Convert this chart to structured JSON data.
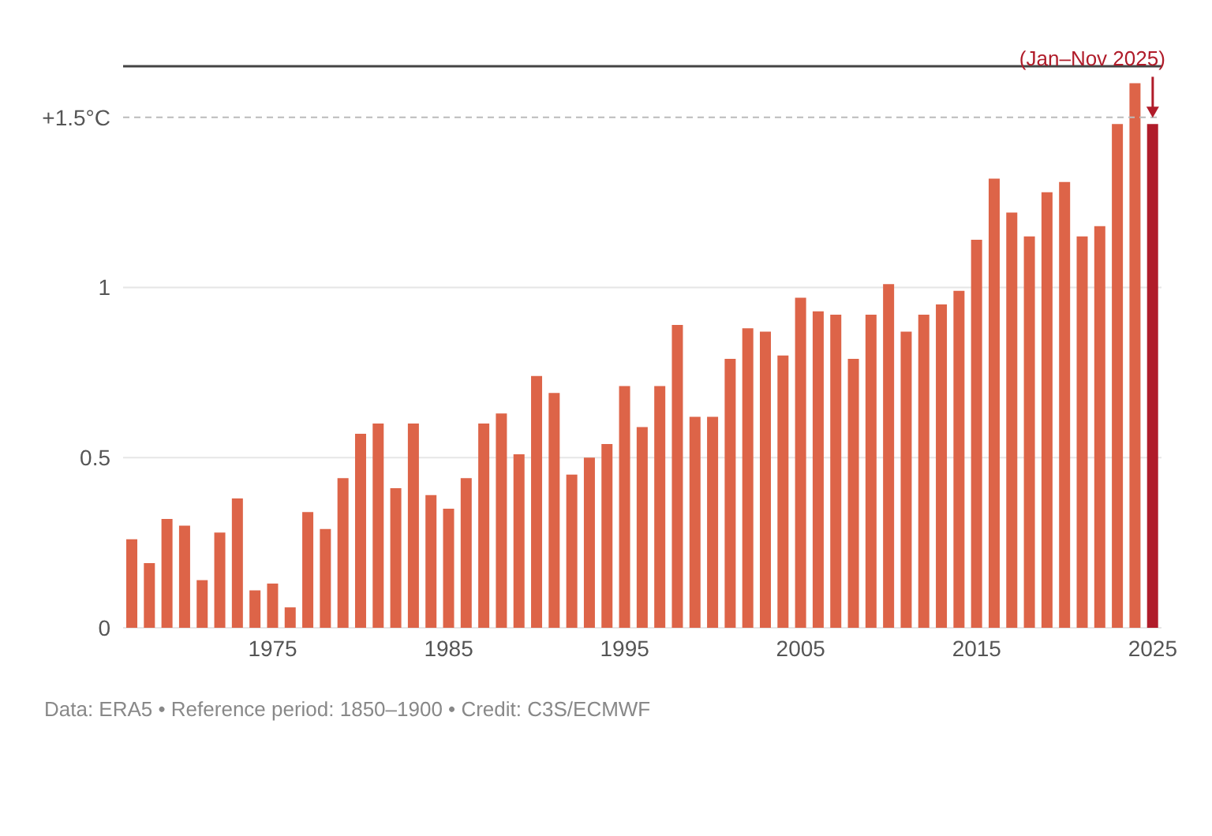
{
  "chart_data": {
    "type": "bar",
    "categories": [
      null,
      null,
      null,
      null,
      null,
      null,
      null,
      null,
      "1975",
      null,
      null,
      null,
      null,
      null,
      null,
      null,
      null,
      null,
      "1985",
      null,
      null,
      null,
      null,
      null,
      null,
      null,
      null,
      null,
      "1995",
      null,
      null,
      null,
      null,
      null,
      null,
      null,
      null,
      null,
      "2005",
      null,
      null,
      null,
      null,
      null,
      null,
      null,
      null,
      null,
      "2015",
      null,
      null,
      null,
      null,
      null,
      null,
      null,
      null,
      null,
      "2025"
    ],
    "values": [
      0.26,
      0.19,
      0.32,
      0.3,
      0.14,
      0.28,
      0.38,
      0.11,
      0.13,
      0.06,
      0.34,
      0.29,
      0.44,
      0.57,
      0.6,
      0.41,
      0.6,
      0.39,
      0.35,
      0.44,
      0.6,
      0.63,
      0.51,
      0.74,
      0.69,
      0.45,
      0.5,
      0.54,
      0.71,
      0.59,
      0.71,
      0.89,
      0.62,
      0.62,
      0.79,
      0.88,
      0.87,
      0.8,
      0.97,
      0.93,
      0.92,
      0.79,
      0.92,
      1.01,
      0.87,
      0.92,
      0.95,
      0.99,
      1.14,
      1.32,
      1.22,
      1.15,
      1.28,
      1.31,
      1.15,
      1.18,
      1.48,
      1.6,
      1.48
    ],
    "colors": [
      "#dd6448",
      "#dd6448",
      "#dd6448",
      "#dd6448",
      "#dd6448",
      "#dd6448",
      "#dd6448",
      "#dd6448",
      "#dd6448",
      "#dd6448",
      "#dd6448",
      "#dd6448",
      "#dd6448",
      "#dd6448",
      "#dd6448",
      "#dd6448",
      "#dd6448",
      "#dd6448",
      "#dd6448",
      "#dd6448",
      "#dd6448",
      "#dd6448",
      "#dd6448",
      "#dd6448",
      "#dd6448",
      "#dd6448",
      "#dd6448",
      "#dd6448",
      "#dd6448",
      "#dd6448",
      "#dd6448",
      "#dd6448",
      "#dd6448",
      "#dd6448",
      "#dd6448",
      "#dd6448",
      "#dd6448",
      "#dd6448",
      "#dd6448",
      "#dd6448",
      "#dd6448",
      "#dd6448",
      "#dd6448",
      "#dd6448",
      "#dd6448",
      "#dd6448",
      "#dd6448",
      "#dd6448",
      "#dd6448",
      "#dd6448",
      "#dd6448",
      "#dd6448",
      "#dd6448",
      "#dd6448",
      "#dd6448",
      "#dd6448",
      "#dd6448",
      "#dd6448",
      "#b01c2a"
    ],
    "ylim": [
      0,
      1.65
    ],
    "yticks": [
      0,
      0.5,
      1,
      {
        "value": 1.5,
        "label": "+1.5°C"
      }
    ],
    "grid": "y",
    "ref_lines": [
      {
        "axis": "y",
        "value": 1.5,
        "label": null,
        "line_style": "dashed",
        "color": "#bbbbbb"
      }
    ],
    "annotations": [
      {
        "text": "(Jan–Nov 2025)",
        "x": "2025",
        "y": 1.48
      },
      "Data: ERA5 • Reference period: 1850–1900 • Credit: C3S/ECMWF"
    ],
    "legend": false
  }
}
